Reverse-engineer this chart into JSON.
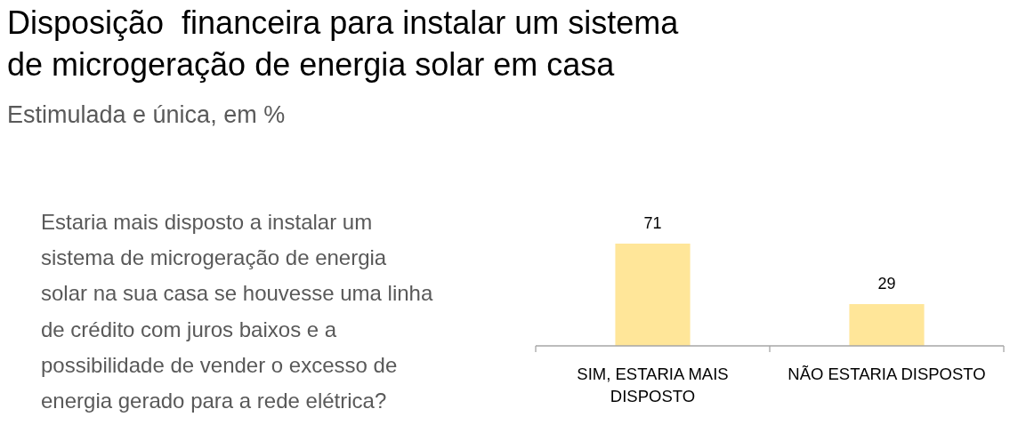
{
  "chart_data": {
    "type": "bar",
    "title": "Disposição  financeira para instalar um sistema\nde microgeração de energia solar em casa",
    "subtitle": "Estimulada e única, em %",
    "annotations": [
      "Estaria mais disposto a instalar um\nsistema de microgeração de energia\nsolar na sua casa se houvesse uma linha\nde crédito com juros baixos e a\npossibilidade de vender o excesso de\nenergia gerado para a rede elétrica?"
    ],
    "categories": [
      "SIM, ESTARIA MAIS DISPOSTO",
      "NÃO ESTARIA DISPOSTO"
    ],
    "values": [
      71,
      29
    ],
    "color": "#ffe699",
    "data_labels": true
  }
}
